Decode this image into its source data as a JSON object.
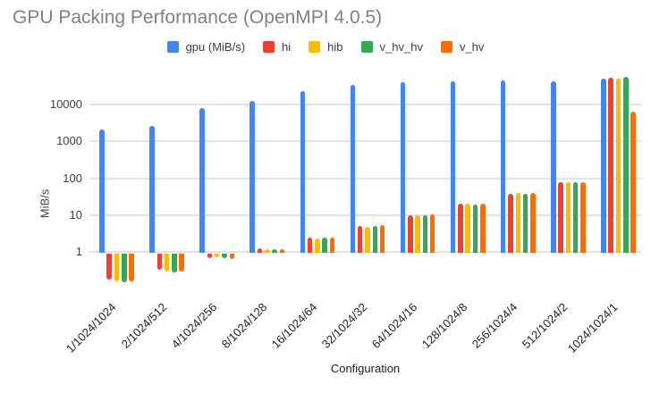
{
  "title": "GPU Packing Performance (OpenMPI 4.0.5)",
  "background_color": "#ffffff",
  "title_color": "#818181",
  "gridline_color": "#e3e3e3",
  "chart_data": {
    "type": "bar",
    "title": "GPU Packing Performance (OpenMPI 4.0.5)",
    "xlabel": "Configuration",
    "ylabel": "MiB/s",
    "y_scale": "log",
    "grid": true,
    "legend_position": "top",
    "ylim": [
      0.13,
      70000
    ],
    "yticks": [
      1,
      10,
      100,
      1000,
      10000
    ],
    "ytick_labels": [
      "1",
      "10",
      "100",
      "1000",
      "10000"
    ],
    "categories": [
      "1/1024/1024",
      "2/1024/512",
      "4/1024/256",
      "8/1024/128",
      "16/1024/64",
      "32/1024/32",
      "64/1024/16",
      "128/1024/8",
      "256/1024/4",
      "512/1024/2",
      "1024/1024/1"
    ],
    "series": [
      {
        "name": "gpu (MiB/s)",
        "color": "#4285f4",
        "values": [
          2100,
          2600,
          8100,
          12500,
          23000,
          34000,
          42000,
          44000,
          45000,
          42500,
          50000
        ]
      },
      {
        "name": "hi",
        "color": "#ea4335",
        "values": [
          0.18,
          0.32,
          0.68,
          1.25,
          2.4,
          5.0,
          9.7,
          20,
          38,
          77,
          55000
        ]
      },
      {
        "name": "hib",
        "color": "#fbbc04",
        "values": [
          0.16,
          0.29,
          0.7,
          1.2,
          2.3,
          4.9,
          10,
          20,
          39,
          80,
          52000
        ]
      },
      {
        "name": "v_hv_hv",
        "color": "#34a853",
        "values": [
          0.15,
          0.28,
          0.68,
          1.2,
          2.4,
          5.0,
          10,
          19.5,
          38,
          78,
          56000
        ]
      },
      {
        "name": "v_hv",
        "color": "#ff6d01",
        "values": [
          0.16,
          0.3,
          0.65,
          1.2,
          2.45,
          5.4,
          10.2,
          20,
          39,
          80,
          6500
        ]
      }
    ]
  }
}
